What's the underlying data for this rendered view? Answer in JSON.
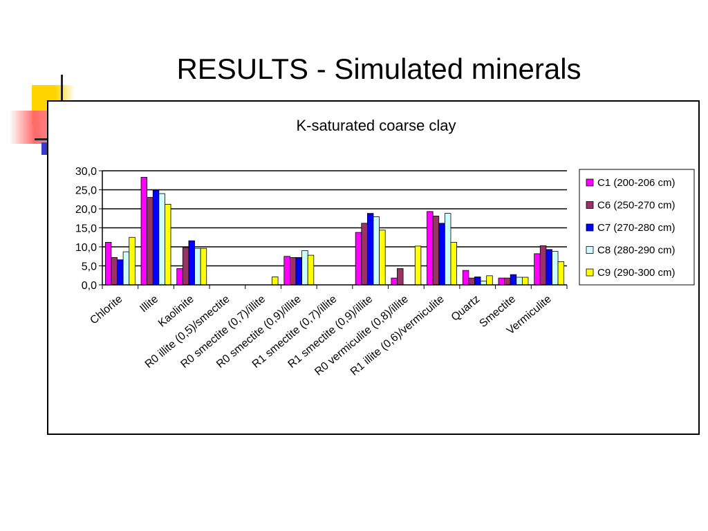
{
  "slide": {
    "title": "RESULTS - Simulated minerals"
  },
  "chart_data": {
    "type": "bar",
    "title": "K-saturated coarse clay",
    "xlabel": "",
    "ylabel": "",
    "ylim": [
      0,
      30
    ],
    "yticks": [
      "0,0",
      "5,0",
      "10,0",
      "15,0",
      "20,0",
      "25,0",
      "30,0"
    ],
    "grid": true,
    "legend_position": "right",
    "categories": [
      "Chlorite",
      "Illite",
      "Kaolinite",
      "R0 illite (0,5)/smectite",
      "R0 smectite (0,7)/illite",
      "R0 smectite (0,9)/illite",
      "R1 smectite (0,7)/illite",
      "R1 smectite (0,9)/illite",
      "R0 vermiculite (0,8)/illite",
      "R1 illite (0,6)/vermiculite",
      "Quartz",
      "Smectite",
      "Vermiculite"
    ],
    "series": [
      {
        "name": "C1 (200-206 cm)",
        "color": "#ff00ff",
        "values": [
          11.2,
          28.3,
          4.3,
          0,
          0,
          7.5,
          0,
          13.8,
          1.8,
          19.3,
          3.8,
          1.8,
          8.2
        ]
      },
      {
        "name": "C6 (250-270 cm)",
        "color": "#993366",
        "values": [
          7.2,
          23.0,
          9.8,
          0,
          0,
          7.2,
          0,
          16.2,
          4.3,
          18.1,
          1.8,
          1.8,
          10.3
        ]
      },
      {
        "name": "C7 (270-280 cm)",
        "color": "#0000ff",
        "values": [
          6.6,
          24.9,
          11.6,
          0,
          0,
          7.2,
          0,
          18.8,
          0,
          16.2,
          2.1,
          2.7,
          9.3
        ]
      },
      {
        "name": "C8 (280-290 cm)",
        "color": "#ccffff",
        "values": [
          8.7,
          24.0,
          9.6,
          0,
          0,
          9.0,
          0,
          17.9,
          0,
          18.8,
          1.0,
          2.0,
          8.8
        ]
      },
      {
        "name": "C9 (290-300 cm)",
        "color": "#ffff00",
        "values": [
          12.5,
          21.2,
          9.6,
          0,
          2.1,
          7.8,
          0,
          14.4,
          10.2,
          11.2,
          2.4,
          2.0,
          6.1
        ]
      }
    ]
  }
}
